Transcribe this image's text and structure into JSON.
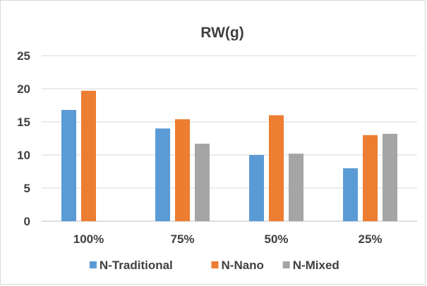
{
  "chart_data": {
    "type": "bar",
    "title": "RW(g)",
    "xlabel": "",
    "ylabel": "",
    "categories": [
      "100%",
      "75%",
      "50%",
      "25%"
    ],
    "series": [
      {
        "name": "N-Traditional",
        "color": "#5b9bd5",
        "values": [
          16.8,
          14.0,
          10.0,
          8.0
        ]
      },
      {
        "name": "N-Nano",
        "color": "#ed7d31",
        "values": [
          19.7,
          15.4,
          16.0,
          13.0
        ]
      },
      {
        "name": "N-Mixed",
        "color": "#a5a5a5",
        "values": [
          null,
          11.7,
          10.2,
          13.2
        ]
      }
    ],
    "ylim": [
      0,
      25
    ],
    "yticks": [
      0,
      5,
      10,
      15,
      20,
      25
    ],
    "grid": true,
    "legend_position": "bottom"
  }
}
